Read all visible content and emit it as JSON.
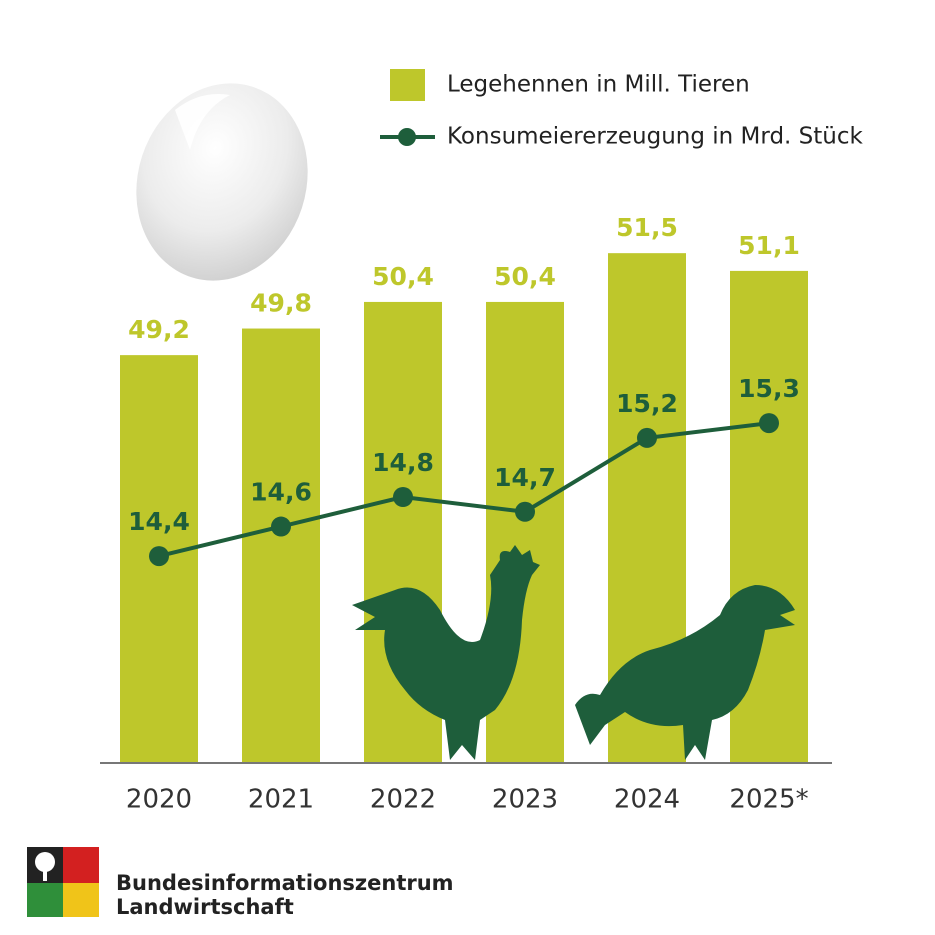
{
  "chart_data": {
    "type": "bar",
    "categories": [
      "2020",
      "2021",
      "2022",
      "2023",
      "2024",
      "2025*"
    ],
    "series": [
      {
        "name": "Legehennen in Mill. Tieren",
        "type": "bar",
        "color": "#bec72b",
        "values": [
          49.2,
          49.8,
          50.4,
          50.4,
          51.5,
          51.1
        ],
        "value_labels": [
          "49,2",
          "49,8",
          "50,4",
          "50,4",
          "51,5",
          "51,1"
        ]
      },
      {
        "name": "Konsumeiererzeugung in Mrd. Stück",
        "type": "line",
        "axis": "y2",
        "color": "#1e5e3b",
        "values": [
          14.4,
          14.6,
          14.8,
          14.7,
          15.2,
          15.3
        ],
        "value_labels": [
          "14,4",
          "14,6",
          "14,8",
          "14,7",
          "15,2",
          "15,3"
        ]
      }
    ],
    "ylim": [
      40,
      52
    ],
    "y2lim": [
      13,
      16.6
    ],
    "legend": "top-right"
  },
  "footer": {
    "lines": [
      "Bundesinformationszentrum",
      "Landwirtschaft"
    ]
  }
}
